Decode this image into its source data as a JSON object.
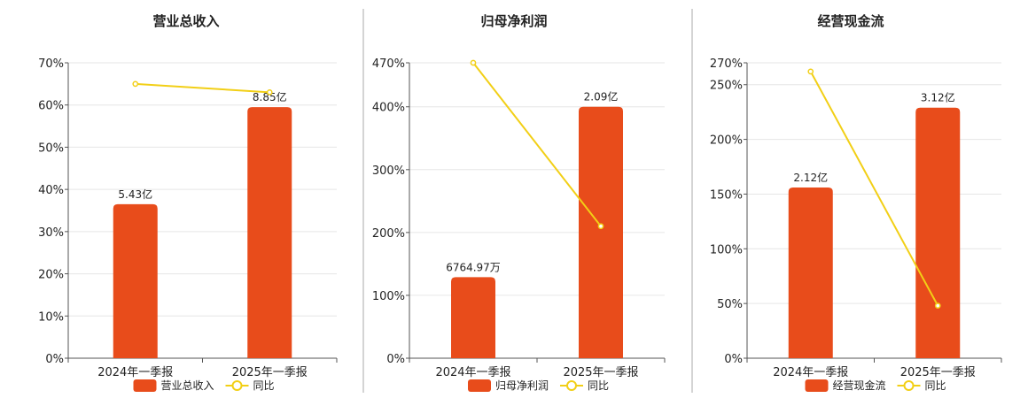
{
  "colors": {
    "bar": "#e84c1b",
    "line": "#f2cf16",
    "grid": "#e6e6e6",
    "axis": "#555555",
    "divider": "#aaaaaa",
    "text": "#222222"
  },
  "chart_data": [
    {
      "type": "bar",
      "title": "营业总收入",
      "categories": [
        "2024年一季报",
        "2025年一季报"
      ],
      "series": [
        {
          "name": "营业总收入",
          "type": "bar",
          "values": [
            5.43,
            8.85
          ],
          "labels": [
            "5.43亿",
            "8.85亿"
          ]
        },
        {
          "name": "同比",
          "type": "line",
          "values": [
            65,
            63
          ]
        }
      ],
      "yticks": [
        "0%",
        "10%",
        "20%",
        "30%",
        "40%",
        "50%",
        "60%",
        "70%"
      ],
      "ylim": [
        0,
        70
      ],
      "bar_values_on_axis": [
        36.5,
        59.5
      ],
      "grid": true,
      "legend": "bottom"
    },
    {
      "type": "bar",
      "title": "归母净利润",
      "categories": [
        "2024年一季报",
        "2025年一季报"
      ],
      "series": [
        {
          "name": "归母净利润",
          "type": "bar",
          "values": [
            0.676497,
            2.09
          ],
          "labels": [
            "6764.97万",
            "2.09亿"
          ]
        },
        {
          "name": "同比",
          "type": "line",
          "values": [
            470,
            210
          ]
        }
      ],
      "yticks": [
        "0%",
        "100%",
        "200%",
        "300%",
        "400%",
        "470%"
      ],
      "ylim": [
        0,
        470
      ],
      "bar_values_on_axis": [
        129,
        400
      ],
      "grid": true,
      "legend": "bottom"
    },
    {
      "type": "bar",
      "title": "经营现金流",
      "categories": [
        "2024年一季报",
        "2025年一季报"
      ],
      "series": [
        {
          "name": "经营现金流",
          "type": "bar",
          "values": [
            2.12,
            3.12
          ],
          "labels": [
            "2.12亿",
            "3.12亿"
          ]
        },
        {
          "name": "同比",
          "type": "line",
          "values": [
            262,
            48
          ]
        }
      ],
      "yticks": [
        "0%",
        "50%",
        "100%",
        "150%",
        "200%",
        "250%",
        "270%"
      ],
      "ylim": [
        0,
        270
      ],
      "bar_values_on_axis": [
        156,
        229
      ],
      "grid": true,
      "legend": "bottom"
    }
  ]
}
